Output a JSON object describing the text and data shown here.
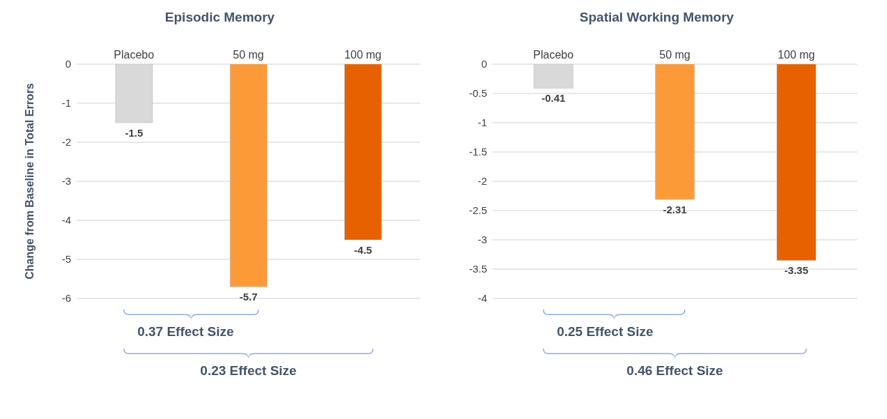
{
  "chart_data": [
    {
      "type": "bar",
      "title": "Episodic Memory",
      "ylabel": "Change from Baseline in Total Errors",
      "categories": [
        "Placebo",
        "50 mg",
        "100 mg"
      ],
      "values": [
        -1.5,
        -5.7,
        -4.5
      ],
      "colors": [
        "#d9d9d9",
        "#fd9a38",
        "#e86100"
      ],
      "ylim": [
        -6,
        0
      ],
      "yticks": [
        0,
        -1,
        -2,
        -3,
        -4,
        -5,
        -6
      ],
      "grid": "y",
      "data_labels": true,
      "annotations": [
        "0.37 Effect Size",
        "0.23 Effect Size"
      ]
    },
    {
      "type": "bar",
      "title": "Spatial Working Memory",
      "categories": [
        "Placebo",
        "50 mg",
        "100 mg"
      ],
      "values": [
        -0.41,
        -2.31,
        -3.35
      ],
      "colors": [
        "#d9d9d9",
        "#fd9a38",
        "#e86100"
      ],
      "ylim": [
        -4,
        0
      ],
      "yticks": [
        0,
        -0.5,
        -1,
        -1.5,
        -2,
        -2.5,
        -3,
        -3.5,
        -4
      ],
      "grid": "y",
      "data_labels": true,
      "annotations": [
        "0.25 Effect Size",
        "0.46 Effect Size"
      ]
    }
  ]
}
